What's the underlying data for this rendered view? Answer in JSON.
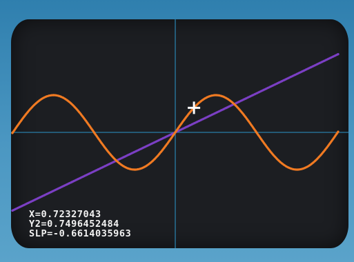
{
  "colors": {
    "bezel": "#3f8cb4",
    "screen": "#1c1e22",
    "axes": "#2a7ea8",
    "line_series": "#7b3fc4",
    "wave_series": "#f07a22",
    "cursor": "#ffffff",
    "readout_text": "#f2f2f2"
  },
  "readout": {
    "x_line": "X=0.72327043",
    "y2_line": "Y2=0.7496452484",
    "slope_line": "SLP=-0.6614035963"
  },
  "chart_data": {
    "type": "line",
    "xlim": [
      -6.3,
      6.3
    ],
    "ylim": [
      -1.8,
      1.8
    ],
    "grid": false,
    "axes_visible": true,
    "tick_labels": false,
    "series": [
      {
        "color": "#7b3fc4",
        "function": "y = x/3",
        "x": [
          -6.3,
          -4,
          -2,
          0,
          2,
          4,
          6.3
        ],
        "y": [
          -2.1,
          -1.333,
          -0.667,
          0,
          0.667,
          1.333,
          2.1
        ]
      },
      {
        "color": "#f07a22",
        "function": "y = sin(x)",
        "x": [
          -6.3,
          -4.71,
          -3.14,
          -1.57,
          0,
          0.72,
          1.57,
          3.14,
          4.71,
          6.3
        ],
        "y": [
          0.02,
          1,
          0,
          -1,
          0,
          0.66,
          1,
          0,
          -1,
          0.02
        ]
      }
    ],
    "cursor": {
      "x": 0.72327043,
      "y": 0.66
    }
  }
}
